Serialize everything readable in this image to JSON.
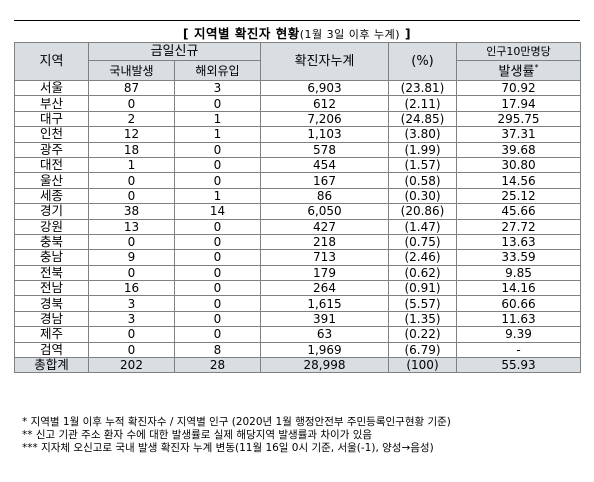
{
  "title": {
    "main": "[ 지역별 확진자 현황",
    "sub": "(1월 3일 이후 누계)",
    "end": " ]"
  },
  "headers": {
    "region": "지역",
    "today_new": "금일신규",
    "domestic": "국내발생",
    "overseas": "해외유입",
    "cumulative": "확진자누계",
    "percent": "(%)",
    "rate_top": "인구10만명당",
    "rate_bottom": "발생률",
    "rate_mark": "*"
  },
  "rows": [
    [
      "서울",
      "87",
      "3",
      "6,903",
      "(23.81)",
      "70.92"
    ],
    [
      "부산",
      "0",
      "0",
      "612",
      "(2.11)",
      "17.94"
    ],
    [
      "대구",
      "2",
      "1",
      "7,206",
      "(24.85)",
      "295.75"
    ],
    [
      "인천",
      "12",
      "1",
      "1,103",
      "(3.80)",
      "37.31"
    ],
    [
      "광주",
      "18",
      "0",
      "578",
      "(1.99)",
      "39.68"
    ],
    [
      "대전",
      "1",
      "0",
      "454",
      "(1.57)",
      "30.80"
    ],
    [
      "울산",
      "0",
      "0",
      "167",
      "(0.58)",
      "14.56"
    ],
    [
      "세종",
      "0",
      "1",
      "86",
      "(0.30)",
      "25.12"
    ],
    [
      "경기",
      "38",
      "14",
      "6,050",
      "(20.86)",
      "45.66"
    ],
    [
      "강원",
      "13",
      "0",
      "427",
      "(1.47)",
      "27.72"
    ],
    [
      "충북",
      "0",
      "0",
      "218",
      "(0.75)",
      "13.63"
    ],
    [
      "충남",
      "9",
      "0",
      "713",
      "(2.46)",
      "33.59"
    ],
    [
      "전북",
      "0",
      "0",
      "179",
      "(0.62)",
      "9.85"
    ],
    [
      "전남",
      "16",
      "0",
      "264",
      "(0.91)",
      "14.16"
    ],
    [
      "경북",
      "3",
      "0",
      "1,615",
      "(5.57)",
      "60.66"
    ],
    [
      "경남",
      "3",
      "0",
      "391",
      "(1.35)",
      "11.63"
    ],
    [
      "제주",
      "0",
      "0",
      "63",
      "(0.22)",
      "9.39"
    ],
    [
      "검역",
      "0",
      "8",
      "1,969",
      "(6.79)",
      "-"
    ],
    [
      "총합계",
      "202",
      "28",
      "28,998",
      "(100)",
      "55.93"
    ]
  ],
  "notes": [
    "* 지역별 1월 이후 누적 확진자수 / 지역별 인구 (2020년 1월 행정안전부 주민등록인구현황 기준)",
    "** 신고 기관 주소 환자 수에 대한 발생률로 실제 해당지역 발생률과 차이가 있음",
    "*** 지자체 오신고로 국내 발생 확진자 누계 변동(11월 16일 0시 기준, 서울(-1), 양성→음성)"
  ],
  "colors": {
    "header_bg": "#d9dee3",
    "grid": "#808080"
  }
}
